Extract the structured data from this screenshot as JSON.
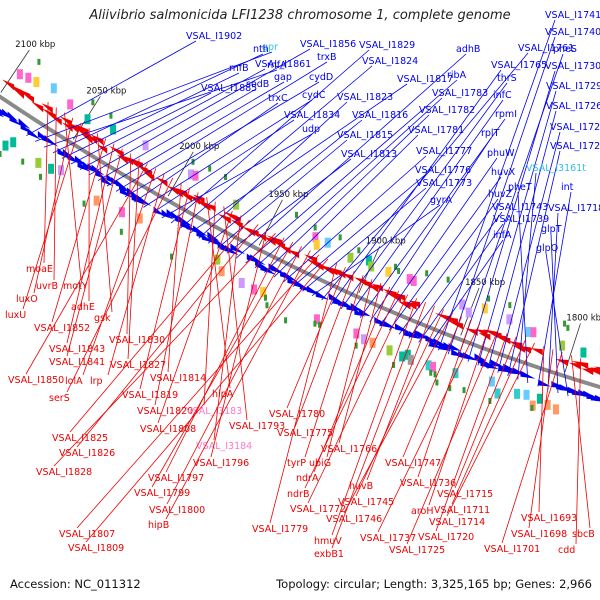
{
  "title": "Aliivibrio salmonicida LFI1238 chromosome 1, complete genome",
  "accession": "Accession: NC_011312",
  "summary": "Topology: circular; Length: 3,325,165 bp; Genes: 2,966",
  "colors": {
    "backbone": "#8a8a8a",
    "forward": "#0000ee",
    "reverse": "#ee0000",
    "rna": "#ff77cc",
    "pseudo": "#33bbee"
  },
  "scale_labels": [
    "2100 kbp",
    "2050 kbp",
    "2000 kbp",
    "1950 kbp",
    "1900 kbp",
    "1850 kbp",
    "1800 kbp"
  ],
  "forward_labels": [
    "VSAL_I1902",
    "gpr",
    "rnfA",
    "nth",
    "rnfB",
    "VSAL_I1885",
    "VSAL_I1861",
    "VSAL_I1856",
    "sodB",
    "gap",
    "trxB",
    "cydD",
    "trxC",
    "cydC",
    "VSAL_I1834",
    "udp",
    "VSAL_I1829",
    "VSAL_I1824",
    "VSAL_I1817",
    "VSAL_I1823",
    "VSAL_I1816",
    "VSAL_I1815",
    "VSAL_I1813",
    "adhB",
    "ribA",
    "VSAL_I1783",
    "VSAL_I1782",
    "VSAL_I1781",
    "VSAL_I1777",
    "VSAL_I1776",
    "VSAL_I1773",
    "gyrA",
    "VSAL_I1761",
    "VSAL_I1765",
    "thrS",
    "infC",
    "rpmI",
    "rplT",
    "phuW",
    "huvX",
    "huvZ",
    "VSAL_I1743",
    "VSAL_I1739",
    "infA",
    "VSAL_I1741",
    "VSAL_I1740",
    "pheS",
    "VSAL_I1730",
    "VSAL_I1729",
    "VSAL_I1726",
    "VSAL_I1724",
    "VSAL_I1723",
    "VSAL_I3161t",
    "pheT",
    "int",
    "VSAL_I1718",
    "glpT",
    "glpQ"
  ],
  "reverse_labels": [
    "moaE",
    "uvrB",
    "motY",
    "luxO",
    "luxU",
    "adhE",
    "gsk",
    "VSAL_I1852",
    "VSAL_I1843",
    "VSAL_I1841",
    "VSAL_I1830",
    "VSAL_I1827",
    "VSAL_I1850",
    "lolA",
    "lrp",
    "serS",
    "VSAL_I1814",
    "VSAL_I1819",
    "VSAL_I1820",
    "hipA",
    "VSAL_I3183",
    "VSAL_I1793",
    "VSAL_I1808",
    "VSAL_I3184",
    "VSAL_I1825",
    "VSAL_I1826",
    "VSAL_I1796",
    "VSAL_I1828",
    "VSAL_I1797",
    "VSAL_I1799",
    "VSAL_I1800",
    "hipB",
    "VSAL_I1807",
    "VSAL_I1809",
    "VSAL_I1779",
    "VSAL_I1780",
    "VSAL_I1775",
    "tyrP",
    "ubiG",
    "VSAL_I1766",
    "ndrA",
    "ndrB",
    "VSAL_I1772",
    "hmuV",
    "exbB1",
    "huvB",
    "VSAL_I1745",
    "VSAL_I1746",
    "VSAL_I1747",
    "VSAL_I1736",
    "VSAL_I1737",
    "aroH",
    "VSAL_I1725",
    "VSAL_I1720",
    "VSAL_I1715",
    "VSAL_I1711",
    "VSAL_I1714",
    "VSAL_I1693",
    "VSAL_I1698",
    "VSAL_I1701",
    "sbcB",
    "cdd"
  ]
}
